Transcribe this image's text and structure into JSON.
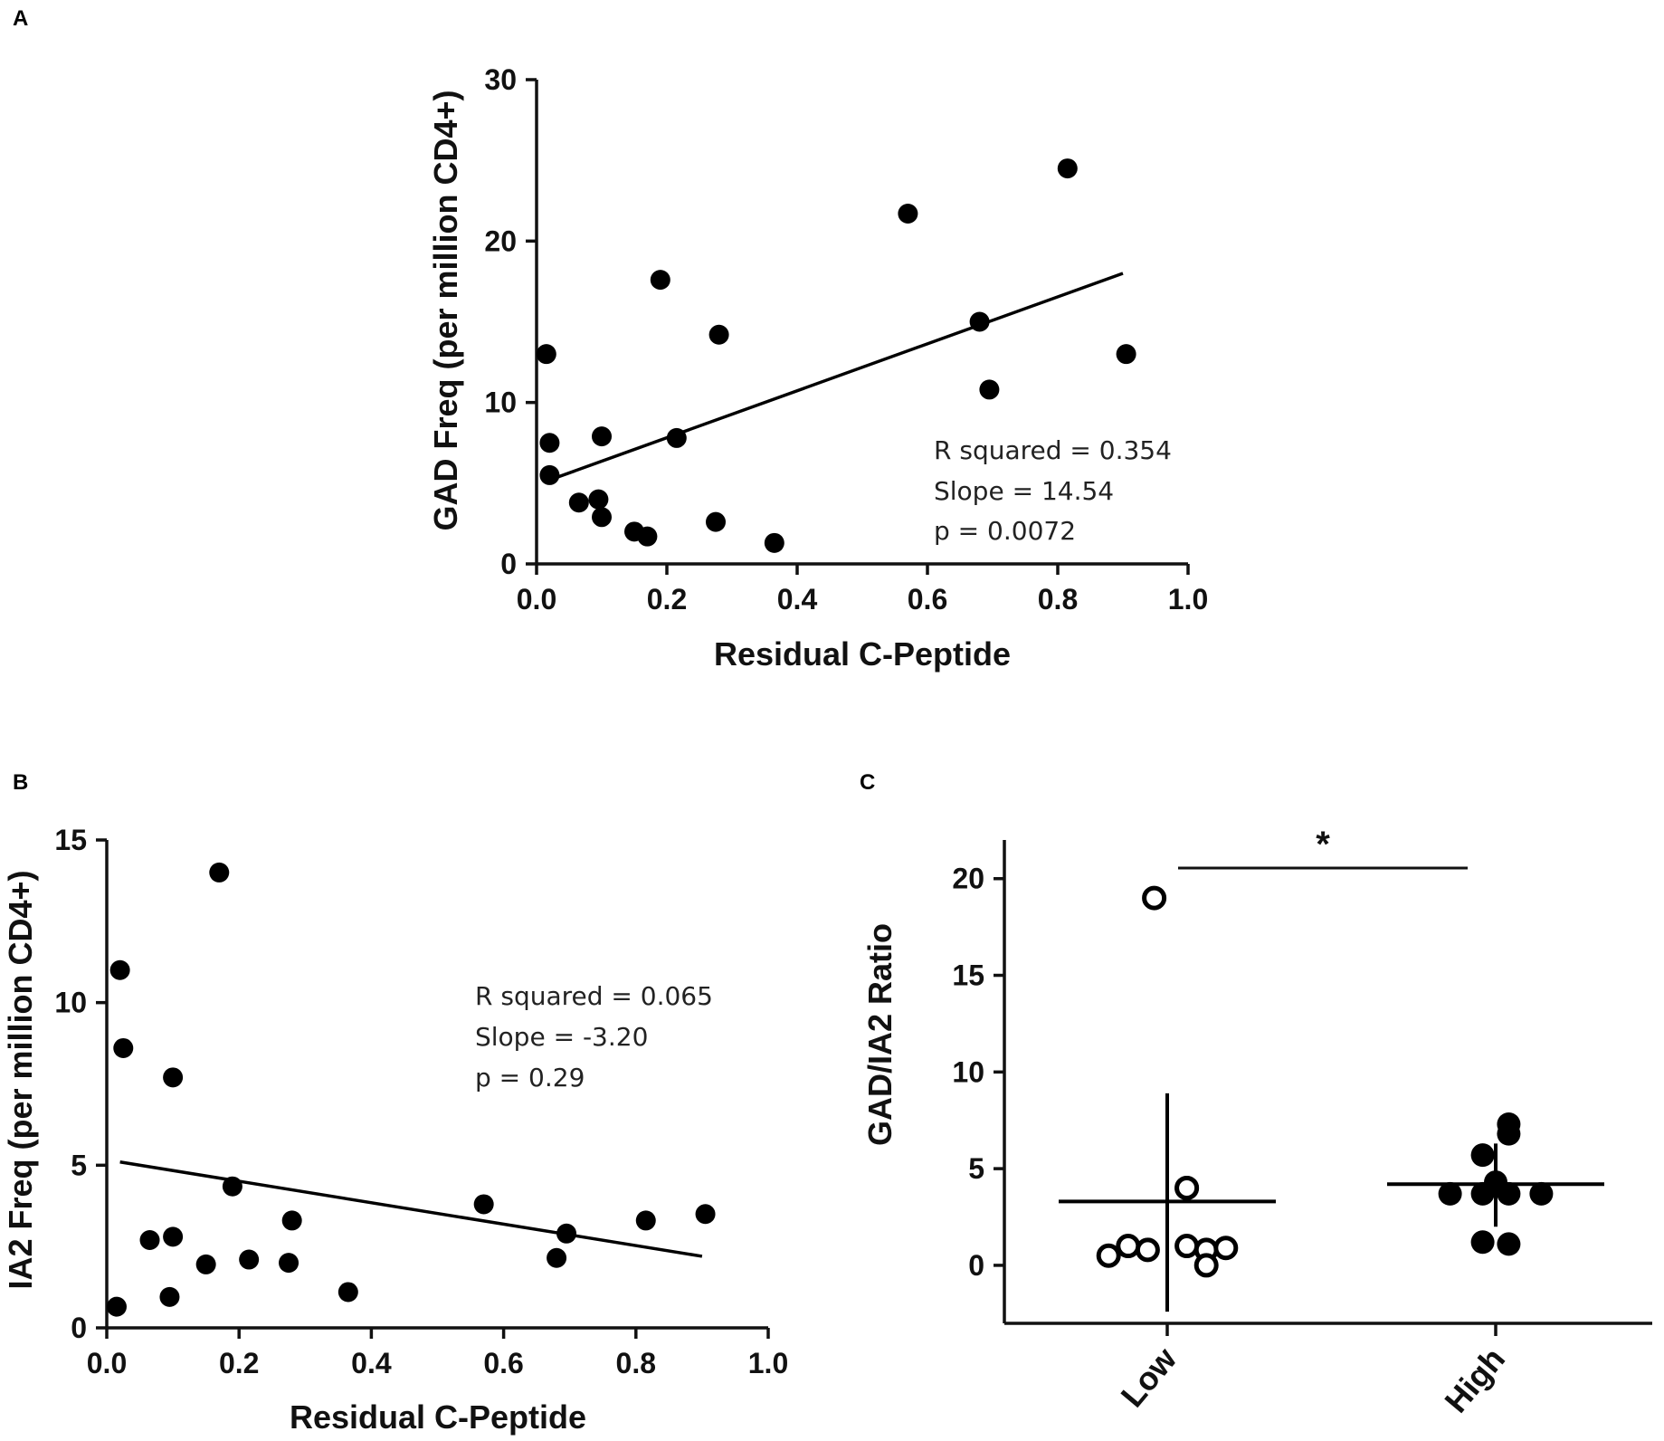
{
  "panel_labels": [
    "A",
    "B",
    "C"
  ],
  "chart_data": [
    {
      "id": "A",
      "type": "scatter",
      "xlabel": "Residual C-Peptide",
      "ylabel": "GAD Freq (per million CD4+)",
      "xlim": [
        0,
        1.0
      ],
      "ylim": [
        0,
        30
      ],
      "xticks": [
        "0.0",
        "0.2",
        "0.4",
        "0.6",
        "0.8",
        "1.0"
      ],
      "yticks": [
        "0",
        "10",
        "20",
        "30"
      ],
      "points": [
        {
          "x": 0.015,
          "y": 13.0
        },
        {
          "x": 0.02,
          "y": 7.5
        },
        {
          "x": 0.02,
          "y": 5.5
        },
        {
          "x": 0.065,
          "y": 3.8
        },
        {
          "x": 0.095,
          "y": 4.0
        },
        {
          "x": 0.1,
          "y": 2.9
        },
        {
          "x": 0.1,
          "y": 7.9
        },
        {
          "x": 0.15,
          "y": 2.0
        },
        {
          "x": 0.17,
          "y": 1.7
        },
        {
          "x": 0.19,
          "y": 17.6
        },
        {
          "x": 0.215,
          "y": 7.8
        },
        {
          "x": 0.275,
          "y": 2.6
        },
        {
          "x": 0.28,
          "y": 14.2
        },
        {
          "x": 0.365,
          "y": 1.3
        },
        {
          "x": 0.57,
          "y": 21.7
        },
        {
          "x": 0.68,
          "y": 15.0
        },
        {
          "x": 0.695,
          "y": 10.8
        },
        {
          "x": 0.815,
          "y": 24.5
        },
        {
          "x": 0.905,
          "y": 13.0
        }
      ],
      "fit_line": {
        "x": [
          0.02,
          0.9
        ],
        "y": [
          5.2,
          18.0
        ]
      },
      "annotations": [
        "R squared = 0.354",
        "Slope = 14.54",
        "p = 0.0072"
      ]
    },
    {
      "id": "B",
      "type": "scatter",
      "xlabel": "Residual C-Peptide",
      "ylabel": "IA2 Freq (per million CD4+)",
      "xlim": [
        0,
        1.0
      ],
      "ylim": [
        0,
        15
      ],
      "xticks": [
        "0.0",
        "0.2",
        "0.4",
        "0.6",
        "0.8",
        "1.0"
      ],
      "yticks": [
        "0",
        "5",
        "10",
        "15"
      ],
      "points": [
        {
          "x": 0.015,
          "y": 0.65
        },
        {
          "x": 0.02,
          "y": 11.0
        },
        {
          "x": 0.025,
          "y": 8.6
        },
        {
          "x": 0.065,
          "y": 2.7
        },
        {
          "x": 0.095,
          "y": 0.95
        },
        {
          "x": 0.1,
          "y": 7.7
        },
        {
          "x": 0.1,
          "y": 2.8
        },
        {
          "x": 0.15,
          "y": 1.95
        },
        {
          "x": 0.17,
          "y": 14.0
        },
        {
          "x": 0.19,
          "y": 4.35
        },
        {
          "x": 0.215,
          "y": 2.1
        },
        {
          "x": 0.275,
          "y": 2.0
        },
        {
          "x": 0.28,
          "y": 3.3
        },
        {
          "x": 0.365,
          "y": 1.1
        },
        {
          "x": 0.57,
          "y": 3.8
        },
        {
          "x": 0.68,
          "y": 2.15
        },
        {
          "x": 0.695,
          "y": 2.9
        },
        {
          "x": 0.815,
          "y": 3.3
        },
        {
          "x": 0.905,
          "y": 3.5
        }
      ],
      "fit_line": {
        "x": [
          0.02,
          0.9
        ],
        "y": [
          5.1,
          2.2
        ]
      },
      "annotations": [
        "R squared = 0.065",
        "Slope = -3.20",
        "p = 0.29"
      ]
    },
    {
      "id": "C",
      "type": "scatter",
      "ylabel": "GAD/IA2 Ratio",
      "categories": [
        "Low",
        "High"
      ],
      "ylim": [
        -3,
        22
      ],
      "yticks": [
        "0",
        "5",
        "10",
        "15",
        "20"
      ],
      "series": [
        {
          "name": "Low",
          "marker": "open",
          "values": [
            19.0,
            4.0,
            4.0,
            0.5,
            1.0,
            0.8,
            1.0,
            0.8,
            0.0,
            0.9
          ],
          "mean": 3.3,
          "sd_range": [
            -2.4,
            8.9
          ]
        },
        {
          "name": "High",
          "marker": "filled",
          "values": [
            7.3,
            6.8,
            5.7,
            4.3,
            3.7,
            3.7,
            3.7,
            3.7,
            1.2,
            1.1
          ],
          "mean": 4.2,
          "sd_range": [
            2.0,
            6.3
          ]
        }
      ],
      "significance": "*"
    }
  ]
}
